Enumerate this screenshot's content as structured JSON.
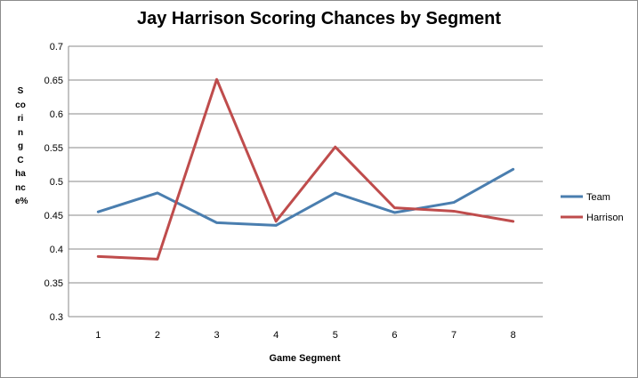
{
  "chart_data": {
    "type": "line",
    "title": "Jay Harrison Scoring Chances by Segment",
    "xlabel": "Game Segment",
    "ylabel": "Scoring Chance%",
    "categories": [
      "1",
      "2",
      "3",
      "4",
      "5",
      "6",
      "7",
      "8"
    ],
    "ylim": [
      0.3,
      0.7
    ],
    "yticks": [
      "0.3",
      "0.35",
      "0.4",
      "0.45",
      "0.5",
      "0.55",
      "0.6",
      "0.65",
      "0.7"
    ],
    "grid": true,
    "legend_position": "right",
    "series": [
      {
        "name": "Team",
        "color": "#4a7eaf",
        "values": [
          0.455,
          0.483,
          0.439,
          0.435,
          0.483,
          0.454,
          0.469,
          0.518
        ]
      },
      {
        "name": "Harrison",
        "color": "#bf4c4c",
        "values": [
          0.389,
          0.385,
          0.651,
          0.441,
          0.551,
          0.461,
          0.456,
          0.441
        ]
      }
    ]
  }
}
